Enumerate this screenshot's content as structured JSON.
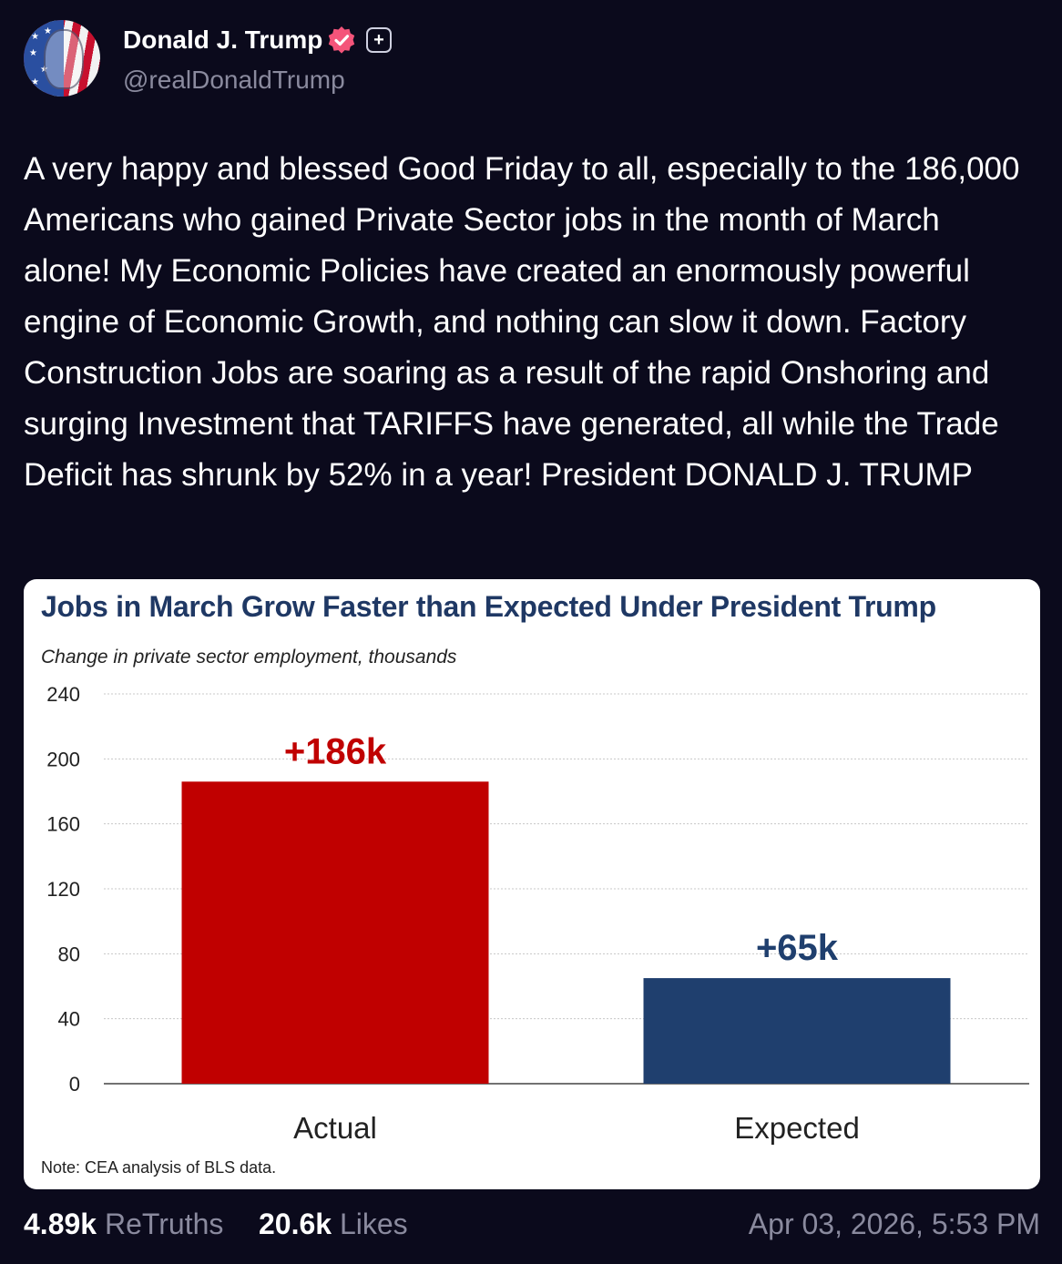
{
  "author": {
    "name": "Donald J. Trump",
    "handle": "@realDonaldTrump",
    "verified_icon": "verified-check-icon",
    "badge_icon": "plus-badge-icon",
    "verified_color": "#f4547a"
  },
  "post": {
    "text": "A very happy and blessed Good Friday to all, especially to the 186,000 Americans who gained Private Sector jobs in the month of March alone! My Economic Policies have created an enormously powerful engine of Economic Growth, and nothing can slow it down. Factory Construction Jobs are soaring as a result of the rapid Onshoring and surging Investment that TARIFFS have generated, all while the Trade Deficit has shrunk by 52% in a year! President DONALD J. TRUMP"
  },
  "chart_data": {
    "type": "bar",
    "title": "Jobs in March Grow Faster than Expected Under President Trump",
    "subtitle": "Change in private sector employment,  thousands",
    "note": "Note: CEA analysis of BLS data.",
    "categories": [
      "Actual",
      "Expected"
    ],
    "values": [
      186,
      65
    ],
    "data_labels": [
      "+186k",
      "+65k"
    ],
    "bar_colors": [
      "#c00000",
      "#1f3f6e"
    ],
    "label_colors": [
      "#c00000",
      "#1f3f6e"
    ],
    "ylim": [
      0,
      240
    ],
    "yticks": [
      "0",
      "40",
      "80",
      "120",
      "160",
      "200",
      "240"
    ],
    "grid": true,
    "legend": "none"
  },
  "stats": {
    "retruths_count": "4.89k",
    "retruths_label": "ReTruths",
    "likes_count": "20.6k",
    "likes_label": "Likes",
    "timestamp": "Apr 03, 2026, 5:53 PM"
  }
}
